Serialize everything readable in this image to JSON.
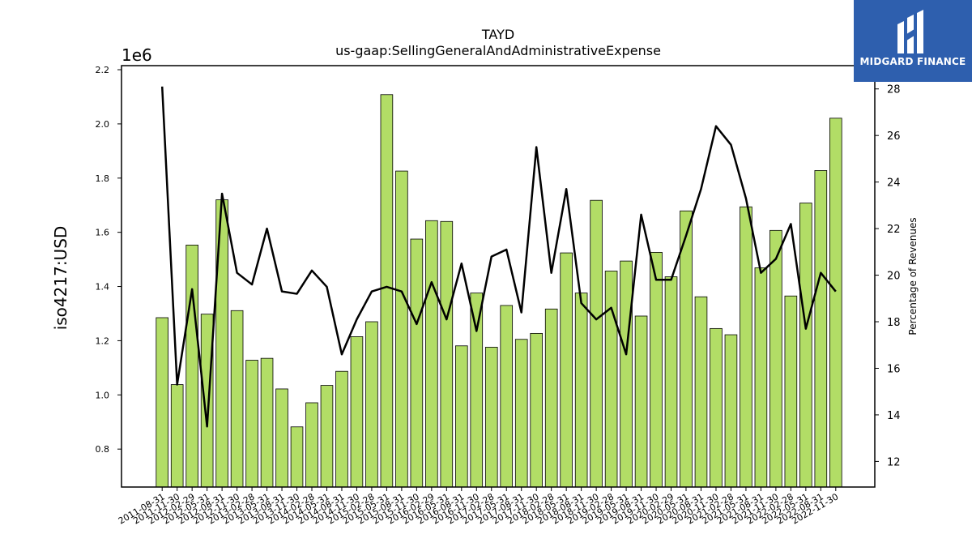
{
  "brand": {
    "name": "MIDGARD FINANCE"
  },
  "chart_data": {
    "type": "bar",
    "title": "TAYD",
    "subtitle": "us-gaap:SellingGeneralAndAdministrativeExpense",
    "ylabel": "iso4217:USD",
    "y_offset_label": "1e6",
    "ylabel_right": "Percentage of Revenues",
    "ylim": [
      0.66,
      2.215
    ],
    "ylim_right": [
      10.9,
      29.0
    ],
    "yticks": [
      0.8,
      1.0,
      1.2,
      1.4,
      1.6,
      1.8,
      2.0,
      2.2
    ],
    "yticks_right": [
      12,
      14,
      16,
      18,
      20,
      22,
      24,
      26,
      28
    ],
    "bar_color": "#b2dd66",
    "line_color": "#000000",
    "grid": false,
    "categories": [
      "2011-08-31",
      "2011-11-30",
      "2012-02-29",
      "2012-05-31",
      "2012-08-31",
      "2012-11-30",
      "2013-02-28",
      "2013-05-31",
      "2013-08-31",
      "2013-11-30",
      "2014-02-28",
      "2014-05-31",
      "2014-08-31",
      "2014-11-30",
      "2015-02-28",
      "2015-05-31",
      "2015-08-31",
      "2015-11-30",
      "2016-02-29",
      "2016-05-31",
      "2016-08-31",
      "2016-11-30",
      "2017-02-28",
      "2017-05-31",
      "2017-08-31",
      "2017-11-30",
      "2018-02-28",
      "2018-05-31",
      "2018-08-31",
      "2018-11-30",
      "2019-02-28",
      "2019-05-31",
      "2019-08-31",
      "2019-11-30",
      "2020-02-29",
      "2020-05-31",
      "2020-08-31",
      "2020-11-30",
      "2021-02-28",
      "2021-05-31",
      "2021-08-31",
      "2021-11-30",
      "2022-02-28",
      "2022-05-31",
      "2022-08-31",
      "2022-11-30"
    ],
    "series": [
      {
        "type": "bar",
        "axis": "left",
        "values": [
          1.285,
          1.038,
          1.553,
          1.298,
          1.72,
          1.311,
          1.128,
          1.135,
          1.022,
          0.882,
          0.971,
          1.035,
          1.087,
          1.215,
          1.27,
          2.108,
          1.826,
          1.575,
          1.643,
          1.64,
          1.181,
          1.376,
          1.176,
          1.33,
          1.205,
          1.227,
          1.317,
          1.524,
          1.376,
          1.718,
          1.457,
          1.494,
          1.291,
          1.526,
          1.436,
          1.679,
          1.362,
          1.245,
          1.222,
          1.694,
          1.469,
          1.607,
          1.365,
          1.708,
          1.828,
          2.021
        ]
      },
      {
        "type": "line",
        "axis": "right",
        "values": [
          28.1,
          15.3,
          19.4,
          13.5,
          23.5,
          20.1,
          19.6,
          22.0,
          19.3,
          19.2,
          20.2,
          19.5,
          16.6,
          18.1,
          19.3,
          19.5,
          19.3,
          17.9,
          19.7,
          18.1,
          20.5,
          17.6,
          20.8,
          21.1,
          18.4,
          25.5,
          20.1,
          23.7,
          18.8,
          18.1,
          18.6,
          16.6,
          22.6,
          19.8,
          19.8,
          21.7,
          23.7,
          26.4,
          25.6,
          23.3,
          20.1,
          20.7,
          22.2,
          17.7,
          20.1,
          19.3
        ]
      }
    ]
  }
}
